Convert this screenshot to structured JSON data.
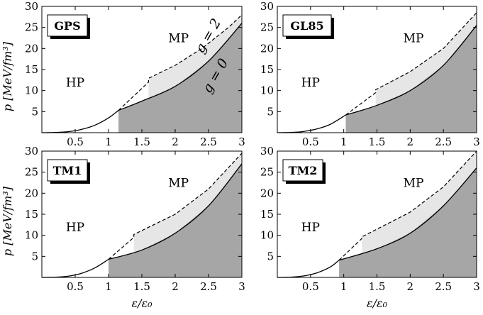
{
  "chart_data": [
    {
      "type": "area",
      "name_box": "GPS",
      "region_labels": {
        "hp": "HP",
        "mp": "MP"
      },
      "curve_labels": {
        "g2": "g = 2",
        "g0": "g = 0"
      },
      "xlim": [
        0,
        3
      ],
      "ylim": [
        0,
        30
      ],
      "xticks": [
        "0.5",
        "1",
        "1.5",
        "2",
        "2.5",
        "3"
      ],
      "yticks": [
        "5",
        "10",
        "15",
        "20",
        "25",
        "30"
      ],
      "ylabel": "p [MeV/fm³]",
      "xlabel": "",
      "hadron": {
        "x": [
          0,
          0.2,
          0.4,
          0.6,
          0.8,
          1.0,
          1.15
        ],
        "y": [
          0,
          0.05,
          0.25,
          0.8,
          1.8,
          3.5,
          5.3
        ]
      },
      "g2": {
        "x": [
          1.15,
          1.6,
          1.6,
          2.0,
          2.4,
          2.8,
          3.0
        ],
        "y": [
          5.3,
          12.0,
          12.9,
          16.0,
          20.0,
          25.0,
          28.0
        ]
      },
      "g0": {
        "x": [
          1.15,
          1.5,
          2.0,
          2.5,
          3.0
        ],
        "y": [
          5.3,
          7.5,
          11.0,
          17.0,
          26.0
        ]
      },
      "grey_start": 1.15,
      "light_start": 1.6
    },
    {
      "type": "area",
      "name_box": "GL85",
      "region_labels": {
        "hp": "HP",
        "mp": "MP"
      },
      "xlim": [
        0,
        3
      ],
      "ylim": [
        0,
        30
      ],
      "xticks": [
        "0.5",
        "1",
        "1.5",
        "2",
        "2.5",
        "3"
      ],
      "yticks": [
        "5",
        "10",
        "15",
        "20",
        "25",
        "30"
      ],
      "xlabel": "",
      "hadron": {
        "x": [
          0,
          0.2,
          0.4,
          0.6,
          0.8,
          1.03
        ],
        "y": [
          0,
          0.05,
          0.3,
          0.9,
          2.0,
          4.2
        ]
      },
      "g2": {
        "x": [
          1.03,
          1.48,
          1.48,
          2.0,
          2.5,
          3.0
        ],
        "y": [
          4.2,
          9.5,
          10.2,
          14.5,
          20.0,
          28.5
        ]
      },
      "g0": {
        "x": [
          1.03,
          1.5,
          2.0,
          2.5,
          3.0
        ],
        "y": [
          4.2,
          6.5,
          10.0,
          16.0,
          25.5
        ]
      },
      "grey_start": 1.03,
      "light_start": 1.48
    },
    {
      "type": "area",
      "name_box": "TM1",
      "region_labels": {
        "hp": "HP",
        "mp": "MP"
      },
      "xlim": [
        0,
        3
      ],
      "ylim": [
        0,
        30
      ],
      "xticks": [
        "0.5",
        "1",
        "1.5",
        "2",
        "2.5",
        "3"
      ],
      "yticks": [
        "5",
        "10",
        "15",
        "20",
        "25",
        "30"
      ],
      "ylabel": "p [MeV/fm³]",
      "xlabel": "ε/ε₀",
      "hadron": {
        "x": [
          0,
          0.2,
          0.4,
          0.6,
          0.8,
          1.0
        ],
        "y": [
          0,
          0.05,
          0.3,
          1.0,
          2.3,
          4.3
        ]
      },
      "g2": {
        "x": [
          1.0,
          1.38,
          1.38,
          2.0,
          2.5,
          3.0
        ],
        "y": [
          4.3,
          9.5,
          10.2,
          15.0,
          21.0,
          29.5
        ]
      },
      "g0": {
        "x": [
          1.0,
          1.5,
          2.0,
          2.5,
          3.0
        ],
        "y": [
          4.3,
          6.5,
          10.5,
          17.0,
          27.0
        ]
      },
      "grey_start": 1.0,
      "light_start": 1.38
    },
    {
      "type": "area",
      "name_box": "TM2",
      "region_labels": {
        "hp": "HP",
        "mp": "MP"
      },
      "xlim": [
        0,
        3
      ],
      "ylim": [
        0,
        30
      ],
      "xticks": [
        "0.5",
        "1",
        "1.5",
        "2",
        "2.5",
        "3"
      ],
      "yticks": [
        "5",
        "10",
        "15",
        "20",
        "25",
        "30"
      ],
      "xlabel": "ε/ε₀",
      "hadron": {
        "x": [
          0,
          0.2,
          0.4,
          0.6,
          0.8,
          0.93
        ],
        "y": [
          0,
          0.05,
          0.35,
          1.1,
          2.5,
          4.1
        ]
      },
      "g2": {
        "x": [
          0.93,
          1.27,
          1.27,
          2.0,
          2.5,
          3.0
        ],
        "y": [
          4.1,
          9.2,
          9.6,
          15.5,
          21.5,
          30.0
        ]
      },
      "g0": {
        "x": [
          0.93,
          1.5,
          2.0,
          2.5,
          3.0
        ],
        "y": [
          4.1,
          6.8,
          10.5,
          17.0,
          26.0
        ]
      },
      "grey_start": 0.93,
      "light_start": 1.27
    }
  ]
}
